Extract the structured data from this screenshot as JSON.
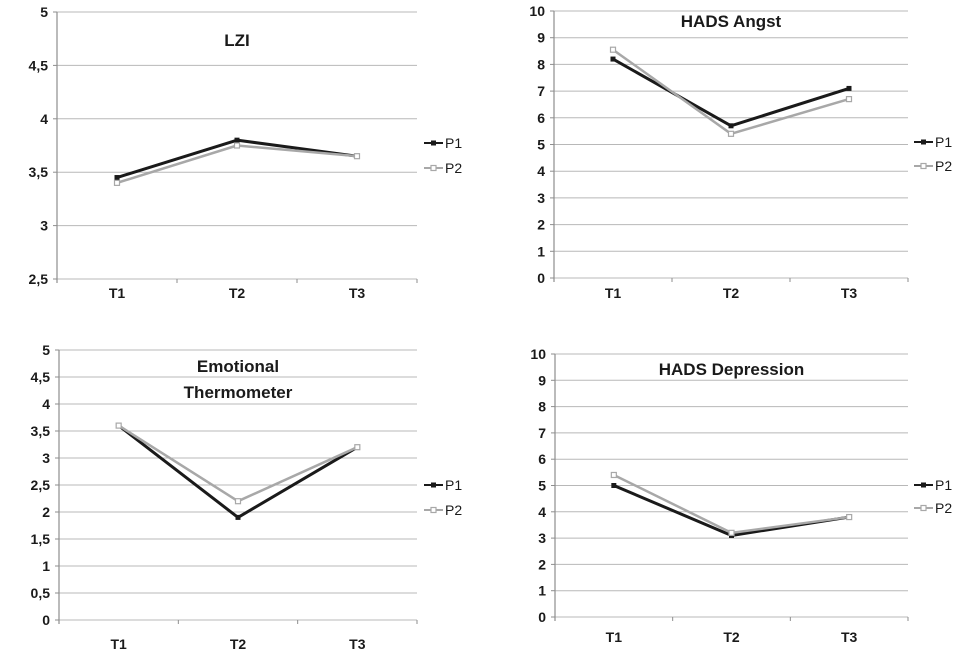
{
  "page": {
    "background": "#ffffff"
  },
  "style": {
    "grid_color": "#b8b8b8",
    "axis_color": "#8e8e8e",
    "text_color": "#1a1a1a",
    "p1_color": "#1a1a1a",
    "p2_color": "#a8a8a8"
  },
  "legend": {
    "labels": [
      "P1",
      "P2"
    ],
    "position": "right"
  },
  "chart_data": [
    {
      "type": "line",
      "title": "LZI",
      "title_lines": [
        "LZI"
      ],
      "categories": [
        "T1",
        "T2",
        "T3"
      ],
      "series": [
        {
          "name": "P1",
          "color": "#1a1a1a",
          "marker": "filled-square",
          "values": [
            3.45,
            3.8,
            3.65
          ]
        },
        {
          "name": "P2",
          "color": "#a8a8a8",
          "marker": "open-square",
          "values": [
            3.4,
            3.75,
            3.65
          ]
        }
      ],
      "xlabel": "",
      "ylabel": "",
      "ylim": [
        2.5,
        5
      ],
      "grid": true,
      "legend_position": "right",
      "yticks": [
        {
          "value": 2.5,
          "label": "2,5"
        },
        {
          "value": 3,
          "label": "3"
        },
        {
          "value": 3.5,
          "label": "3,5"
        },
        {
          "value": 4,
          "label": "4"
        },
        {
          "value": 4.5,
          "label": "4,5"
        },
        {
          "value": 5,
          "label": "5"
        }
      ]
    },
    {
      "type": "line",
      "title": "HADS Angst",
      "title_lines": [
        "HADS Angst"
      ],
      "categories": [
        "T1",
        "T2",
        "T3"
      ],
      "series": [
        {
          "name": "P1",
          "color": "#1a1a1a",
          "marker": "filled-square",
          "values": [
            8.2,
            5.7,
            7.1
          ]
        },
        {
          "name": "P2",
          "color": "#a8a8a8",
          "marker": "open-square",
          "values": [
            8.55,
            5.4,
            6.7
          ]
        }
      ],
      "xlabel": "",
      "ylabel": "",
      "ylim": [
        0,
        10
      ],
      "grid": true,
      "legend_position": "right",
      "yticks": [
        {
          "value": 0,
          "label": "0"
        },
        {
          "value": 1,
          "label": "1"
        },
        {
          "value": 2,
          "label": "2"
        },
        {
          "value": 3,
          "label": "3"
        },
        {
          "value": 4,
          "label": "4"
        },
        {
          "value": 5,
          "label": "5"
        },
        {
          "value": 6,
          "label": "6"
        },
        {
          "value": 7,
          "label": "7"
        },
        {
          "value": 8,
          "label": "8"
        },
        {
          "value": 9,
          "label": "9"
        },
        {
          "value": 10,
          "label": "10"
        }
      ]
    },
    {
      "type": "line",
      "title": "Emotional Thermometer",
      "title_lines": [
        "Emotional",
        "Thermometer"
      ],
      "categories": [
        "T1",
        "T2",
        "T3"
      ],
      "series": [
        {
          "name": "P1",
          "color": "#1a1a1a",
          "marker": "filled-square",
          "values": [
            3.6,
            1.9,
            3.2
          ]
        },
        {
          "name": "P2",
          "color": "#a8a8a8",
          "marker": "open-square",
          "values": [
            3.6,
            2.2,
            3.2
          ]
        }
      ],
      "xlabel": "",
      "ylabel": "",
      "ylim": [
        0,
        5
      ],
      "grid": true,
      "legend_position": "right",
      "yticks": [
        {
          "value": 0,
          "label": "0"
        },
        {
          "value": 0.5,
          "label": "0,5"
        },
        {
          "value": 1,
          "label": "1"
        },
        {
          "value": 1.5,
          "label": "1,5"
        },
        {
          "value": 2,
          "label": "2"
        },
        {
          "value": 2.5,
          "label": "2,5"
        },
        {
          "value": 3,
          "label": "3"
        },
        {
          "value": 3.5,
          "label": "3,5"
        },
        {
          "value": 4,
          "label": "4"
        },
        {
          "value": 4.5,
          "label": "4,5"
        },
        {
          "value": 5,
          "label": "5"
        }
      ]
    },
    {
      "type": "line",
      "title": "HADS Depression",
      "title_lines": [
        "HADS Depression"
      ],
      "categories": [
        "T1",
        "T2",
        "T3"
      ],
      "series": [
        {
          "name": "P1",
          "color": "#1a1a1a",
          "marker": "filled-square",
          "values": [
            5.0,
            3.1,
            3.8
          ]
        },
        {
          "name": "P2",
          "color": "#a8a8a8",
          "marker": "open-square",
          "values": [
            5.4,
            3.2,
            3.8
          ]
        }
      ],
      "xlabel": "",
      "ylabel": "",
      "ylim": [
        0,
        10
      ],
      "grid": true,
      "legend_position": "right",
      "yticks": [
        {
          "value": 0,
          "label": "0"
        },
        {
          "value": 1,
          "label": "1"
        },
        {
          "value": 2,
          "label": "2"
        },
        {
          "value": 3,
          "label": "3"
        },
        {
          "value": 4,
          "label": "4"
        },
        {
          "value": 5,
          "label": "5"
        },
        {
          "value": 6,
          "label": "6"
        },
        {
          "value": 7,
          "label": "7"
        },
        {
          "value": 8,
          "label": "8"
        },
        {
          "value": 9,
          "label": "9"
        },
        {
          "value": 10,
          "label": "10"
        }
      ]
    }
  ]
}
